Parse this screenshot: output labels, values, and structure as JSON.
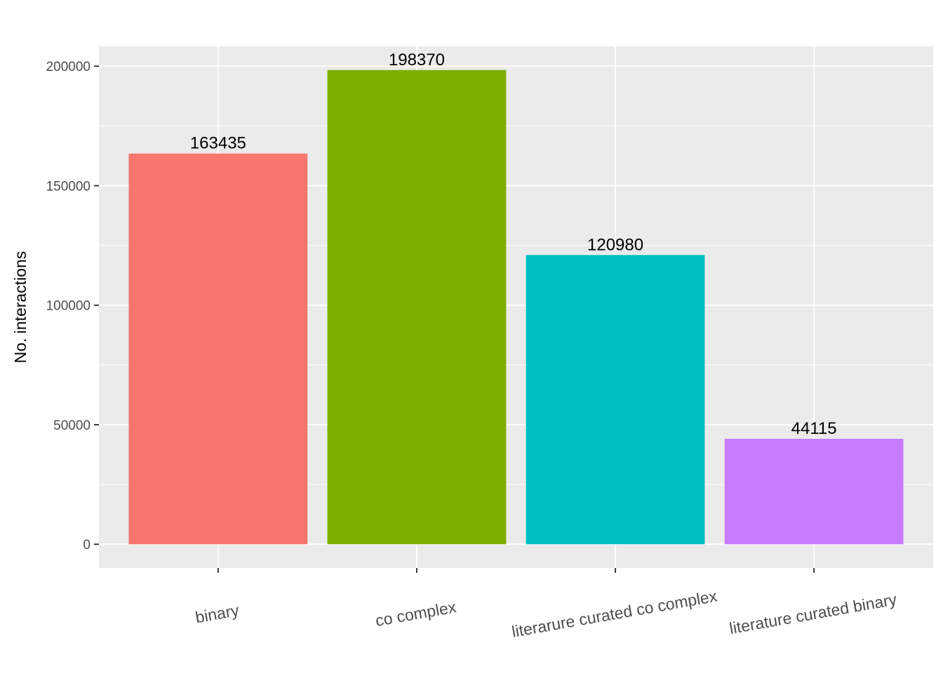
{
  "chart_data": {
    "type": "bar",
    "title": "",
    "xlabel": "",
    "ylabel": "No. interactions",
    "categories": [
      "binary",
      "co complex",
      "literarure curated co complex",
      "literature curated binary"
    ],
    "values": [
      163435,
      198370,
      120980,
      44115
    ],
    "data_labels": [
      "163435",
      "198370",
      "120980",
      "44115"
    ],
    "colors": [
      "#F8766D",
      "#7CAE00",
      "#00BFC4",
      "#C77CFF"
    ],
    "y_ticks": [
      0,
      50000,
      100000,
      150000,
      200000
    ],
    "y_tick_labels": [
      "0",
      "50000",
      "100000",
      "150000",
      "200000"
    ],
    "ylim": [
      -9918.5,
      208288.5
    ],
    "grid": true,
    "legend": "none",
    "x_tick_label_rotation_deg": -10,
    "panel_background": "#EBEBEB"
  }
}
